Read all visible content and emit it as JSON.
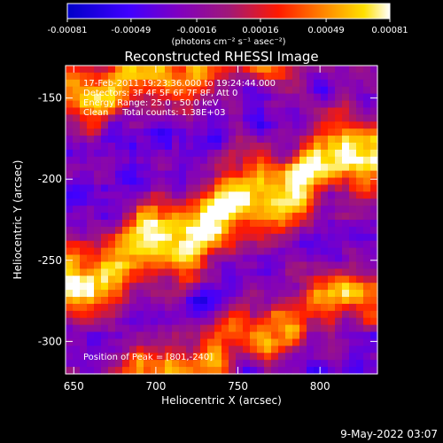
{
  "chart_data": {
    "type": "heatmap",
    "title": "Reconstructed RHESSI Image",
    "xlabel": "Heliocentric X (arcsec)",
    "ylabel": "Heliocentric Y (arcsec)",
    "xlim": [
      645,
      835
    ],
    "ylim": [
      -320,
      -130
    ],
    "x_ticks": [
      650,
      700,
      750,
      800
    ],
    "x_tick_labels": [
      "650",
      "700",
      "750",
      "800"
    ],
    "y_ticks": [
      -150,
      -200,
      -250,
      -300
    ],
    "y_tick_labels": [
      "-150",
      "-200",
      "-250",
      "-300"
    ],
    "colorbar": {
      "min": -0.00081,
      "max": 0.00081,
      "ticks": [
        -0.00081,
        -0.00049,
        -0.00016,
        0.00016,
        0.00049,
        0.00081
      ],
      "tick_labels": [
        "-0.00081",
        "-0.00049",
        "-0.00016",
        "0.00016",
        "0.00049",
        "0.00081"
      ],
      "units": "(photons cm⁻² s⁻¹ asec⁻²)",
      "stops": [
        {
          "v": -0.00081,
          "color": "#0000c8"
        },
        {
          "v": -0.0005,
          "color": "#4000ff"
        },
        {
          "v": -0.00025,
          "color": "#8000c0"
        },
        {
          "v": 0.0,
          "color": "#a01878"
        },
        {
          "v": 0.00025,
          "color": "#ff1a00"
        },
        {
          "v": 0.0005,
          "color": "#ff9000"
        },
        {
          "v": 0.00068,
          "color": "#ffe000"
        },
        {
          "v": 0.00081,
          "color": "#ffffff"
        }
      ]
    },
    "annotations": [
      "17-Feb-2011 19:23:36.000 to 19:24:44.000",
      "Detectors: 3F 4F 5F 6F 7F 8F, Att 0",
      "Energy Range: 25.0 - 50.0 keV",
      "Clean     Total counts: 1.38E+03"
    ],
    "peak_label": "Position of Peak = [801,-240]",
    "peak": [
      801,
      -240
    ],
    "ridges": [
      {
        "start": [
          645,
          -150
        ],
        "end": [
          835,
          -100
        ],
        "width": 20,
        "amplitude": 0.00058
      },
      {
        "start": [
          645,
          -265
        ],
        "end": [
          835,
          -180
        ],
        "width": 24,
        "amplitude": 0.00078
      },
      {
        "start": [
          645,
          -345
        ],
        "end": [
          835,
          -265
        ],
        "width": 18,
        "amplitude": 0.00048
      }
    ],
    "background_level": -0.00032
  },
  "footer_date": "9-May-2022 03:07"
}
